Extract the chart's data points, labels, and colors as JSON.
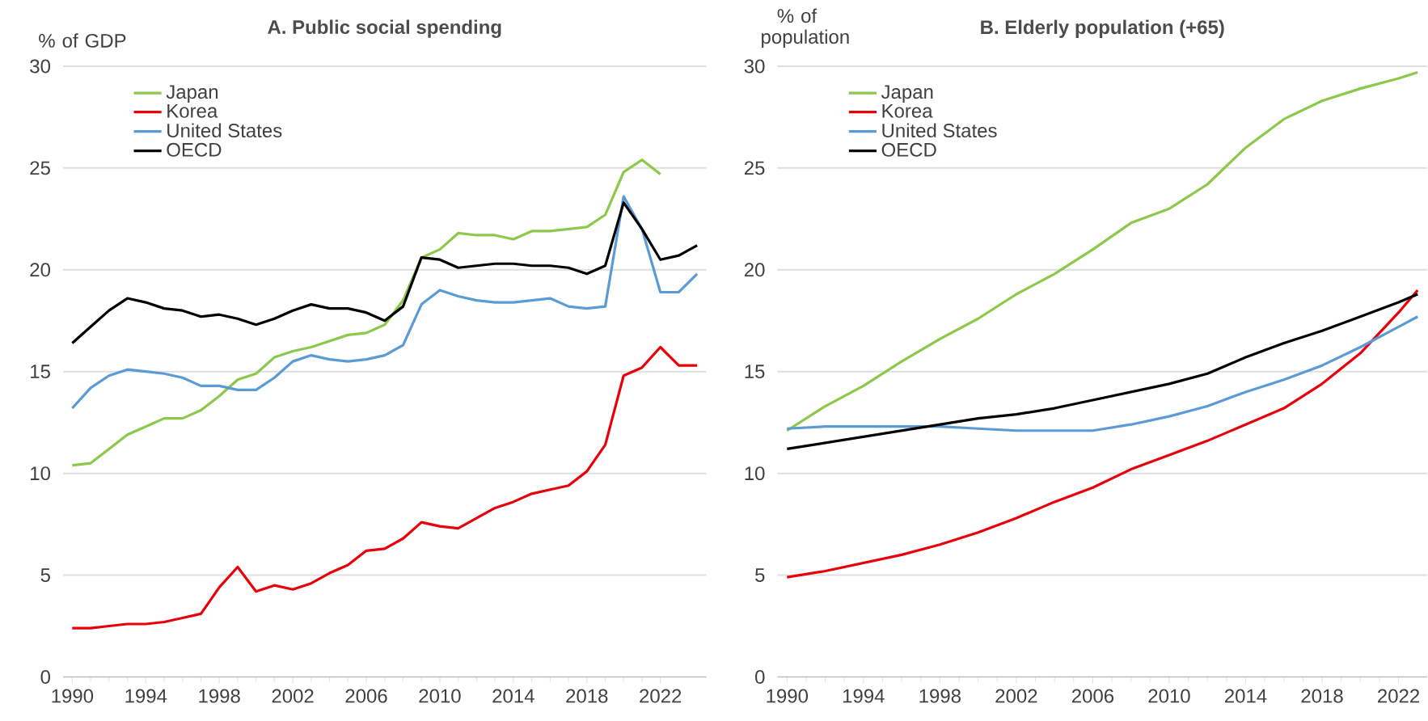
{
  "chart_data": [
    {
      "type": "line",
      "title": "A. Public social spending",
      "ylabel": "% of GDP",
      "x": [
        1990,
        1991,
        1992,
        1993,
        1994,
        1995,
        1996,
        1997,
        1998,
        1999,
        2000,
        2001,
        2002,
        2003,
        2004,
        2005,
        2006,
        2007,
        2008,
        2009,
        2010,
        2011,
        2012,
        2013,
        2014,
        2015,
        2016,
        2017,
        2018,
        2019,
        2020,
        2021,
        2022,
        2023,
        2024
      ],
      "series": [
        {
          "name": "Japan",
          "color": "#8cc84b",
          "values": [
            10.4,
            10.5,
            11.2,
            11.9,
            12.3,
            12.7,
            12.7,
            13.1,
            13.8,
            14.6,
            14.9,
            15.7,
            16.0,
            16.2,
            16.5,
            16.8,
            16.9,
            17.3,
            18.5,
            20.6,
            21.0,
            21.8,
            21.7,
            21.7,
            21.5,
            21.9,
            21.9,
            22.0,
            22.1,
            22.7,
            24.8,
            25.4,
            24.7,
            null,
            null
          ]
        },
        {
          "name": "Korea",
          "color": "#e8000b",
          "values": [
            2.4,
            2.4,
            2.5,
            2.6,
            2.6,
            2.7,
            2.9,
            3.1,
            4.4,
            5.4,
            4.2,
            4.5,
            4.3,
            4.6,
            5.1,
            5.5,
            6.2,
            6.3,
            6.8,
            7.6,
            7.4,
            7.3,
            7.8,
            8.3,
            8.6,
            9.0,
            9.2,
            9.4,
            10.1,
            11.4,
            14.8,
            15.2,
            16.2,
            15.3,
            15.3
          ]
        },
        {
          "name": "United States",
          "color": "#5b9bd5",
          "values": [
            13.2,
            14.2,
            14.8,
            15.1,
            15.0,
            14.9,
            14.7,
            14.3,
            14.3,
            14.1,
            14.1,
            14.7,
            15.5,
            15.8,
            15.6,
            15.5,
            15.6,
            15.8,
            16.3,
            18.3,
            19.0,
            18.7,
            18.5,
            18.4,
            18.4,
            18.5,
            18.6,
            18.2,
            18.1,
            18.2,
            23.6,
            22.0,
            18.9,
            18.9,
            19.8
          ]
        },
        {
          "name": "OECD",
          "color": "#000000",
          "values": [
            16.4,
            17.2,
            18.0,
            18.6,
            18.4,
            18.1,
            18.0,
            17.7,
            17.8,
            17.6,
            17.3,
            17.6,
            18.0,
            18.3,
            18.1,
            18.1,
            17.9,
            17.5,
            18.2,
            20.6,
            20.5,
            20.1,
            20.2,
            20.3,
            20.3,
            20.2,
            20.2,
            20.1,
            19.8,
            20.2,
            23.3,
            22.0,
            20.5,
            20.7,
            21.2
          ]
        }
      ],
      "xlim": [
        1989.5,
        2024.5
      ],
      "xticks": [
        1990,
        1994,
        1998,
        2002,
        2006,
        2010,
        2014,
        2018,
        2022
      ],
      "ylim": [
        0,
        30
      ],
      "yticks": [
        0,
        5,
        10,
        15,
        20,
        25,
        30
      ],
      "grid": "y",
      "legend": "top left"
    },
    {
      "type": "line",
      "title": "B. Elderly population (+65)",
      "ylabel": "% of population",
      "x": [
        1990,
        1992,
        1994,
        1996,
        1998,
        2000,
        2002,
        2004,
        2006,
        2008,
        2010,
        2012,
        2014,
        2016,
        2018,
        2020,
        2022,
        2023
      ],
      "series": [
        {
          "name": "Japan",
          "color": "#8cc84b",
          "values": [
            12.1,
            13.3,
            14.3,
            15.5,
            16.6,
            17.6,
            18.8,
            19.8,
            21.0,
            22.3,
            23.0,
            24.2,
            26.0,
            27.4,
            28.3,
            28.9,
            29.4,
            29.7
          ]
        },
        {
          "name": "Korea",
          "color": "#e8000b",
          "values": [
            4.9,
            5.2,
            5.6,
            6.0,
            6.5,
            7.1,
            7.8,
            8.6,
            9.3,
            10.2,
            10.9,
            11.6,
            12.4,
            13.2,
            14.4,
            15.9,
            17.9,
            19.0
          ]
        },
        {
          "name": "United States",
          "color": "#5b9bd5",
          "values": [
            12.2,
            12.3,
            12.3,
            12.3,
            12.3,
            12.2,
            12.1,
            12.1,
            12.1,
            12.4,
            12.8,
            13.3,
            14.0,
            14.6,
            15.3,
            16.2,
            17.2,
            17.7
          ]
        },
        {
          "name": "OECD",
          "color": "#000000",
          "values": [
            11.2,
            11.5,
            11.8,
            12.1,
            12.4,
            12.7,
            12.9,
            13.2,
            13.6,
            14.0,
            14.4,
            14.9,
            15.7,
            16.4,
            17.0,
            17.7,
            18.4,
            18.8
          ]
        }
      ],
      "xlim": [
        1989.5,
        2023.5
      ],
      "xticks": [
        1990,
        1994,
        1998,
        2002,
        2006,
        2010,
        2014,
        2018,
        2022
      ],
      "ylim": [
        0,
        30
      ],
      "yticks": [
        0,
        5,
        10,
        15,
        20,
        25,
        30
      ],
      "grid": "y",
      "legend": "top left"
    }
  ]
}
